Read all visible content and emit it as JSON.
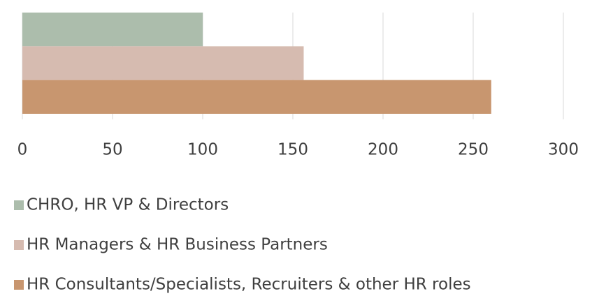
{
  "chart_data": {
    "type": "hbar",
    "categories": [
      null
    ],
    "series": [
      {
        "name": "CHRO, HR VP & Directors",
        "color": "#acbdac",
        "values": [
          100
        ]
      },
      {
        "name": "HR Managers & HR Business Partners",
        "color": "#d6bbb0",
        "values": [
          156
        ]
      },
      {
        "name": "HR Consultants/Specialists, Recruiters & other HR roles",
        "color": "#c8966f",
        "values": [
          260
        ]
      }
    ],
    "xlim": [
      0,
      300
    ],
    "xticks": [
      0,
      50,
      100,
      150,
      200,
      250,
      300
    ],
    "grid": true,
    "legend": "bottom"
  }
}
